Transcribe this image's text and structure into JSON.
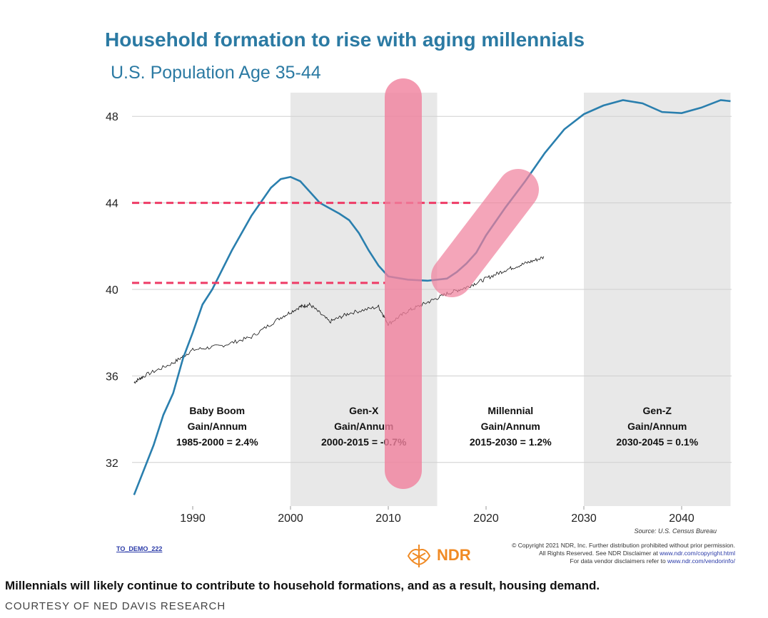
{
  "chart_data": {
    "type": "line",
    "title": "Household formation to rise with aging millennials",
    "subtitle": "U.S. Population Age 35-44",
    "xlabel": "",
    "ylabel": "",
    "xlim": [
      1983.7,
      2045
    ],
    "ylim": [
      30,
      50.2
    ],
    "x_ticks": [
      "1990",
      "2000",
      "2010",
      "2020",
      "2030",
      "2040"
    ],
    "y_ticks": [
      "32",
      "36",
      "40",
      "44",
      "48"
    ],
    "grid": "horizontal",
    "shaded_periods": [
      [
        2000,
        2015
      ],
      [
        2030,
        2045
      ]
    ],
    "series": [
      {
        "color": "#2a7fae",
        "x": [
          1984,
          1986,
          1987,
          1988,
          1989,
          1990,
          1991,
          1992,
          1994,
          1996,
          1998,
          1999,
          2000,
          2001,
          2002,
          2003,
          2005,
          2006,
          2007,
          2008,
          2009,
          2010,
          2012,
          2014,
          2016,
          2017,
          2018,
          2019,
          2020,
          2022,
          2024,
          2026,
          2028,
          2030,
          2032,
          2034,
          2036,
          2038,
          2040,
          2042,
          2044,
          2045
        ],
        "y": [
          30.5,
          32.8,
          34.2,
          35.2,
          36.8,
          38.0,
          39.3,
          40.0,
          41.8,
          43.4,
          44.7,
          45.1,
          45.2,
          45.0,
          44.5,
          44.0,
          43.5,
          43.2,
          42.6,
          41.8,
          41.1,
          40.6,
          40.45,
          40.4,
          40.5,
          40.8,
          41.2,
          41.7,
          42.5,
          43.8,
          45.0,
          46.3,
          47.4,
          48.1,
          48.5,
          48.75,
          48.6,
          48.2,
          48.15,
          48.4,
          48.75,
          48.7
        ]
      },
      {
        "color": "#111111",
        "x": [
          1984,
          1985,
          1988,
          1990,
          1993,
          1996,
          1999,
          2001,
          2002,
          2004,
          2006,
          2009,
          2010,
          2012,
          2014,
          2016,
          2018,
          2020,
          2022,
          2024,
          2026
        ],
        "y": [
          35.7,
          36.0,
          36.6,
          37.2,
          37.4,
          37.8,
          38.7,
          39.2,
          39.3,
          38.5,
          38.9,
          39.2,
          38.4,
          39.0,
          39.4,
          39.8,
          40.1,
          40.5,
          40.9,
          41.2,
          41.5
        ]
      }
    ],
    "reference_lines": [
      {
        "y": 44,
        "x_end": 2018.5,
        "color": "#ee3b66"
      },
      {
        "y": 40.3,
        "x_end": 2009.7,
        "color": "#ee3b66"
      }
    ],
    "annotations": [
      {
        "x": 1992.5,
        "lines": [
          "Baby Boom",
          "Gain/Annum",
          "1985-2000 = 2.4%"
        ]
      },
      {
        "x": 2007.5,
        "lines": [
          "Gen-X",
          "Gain/Annum",
          "2000-2015 = -0.7%"
        ]
      },
      {
        "x": 2022.5,
        "lines": [
          "Millennial",
          "Gain/Annum",
          "2015-2030 = 1.2%"
        ]
      },
      {
        "x": 2037.5,
        "lines": [
          "Gen-Z",
          "Gain/Annum",
          "2030-2045 = 0.1%"
        ]
      }
    ],
    "highlight_color": "#f0809c"
  },
  "footer": {
    "source": "Source: U.S. Census Bureau",
    "demo_link": "TO_DEMO_222",
    "logo": "NDR",
    "copyright_lines": [
      "© Copyright 2021 NDR, Inc. Further distribution prohibited without prior permission.",
      "All Rights Reserved. See NDR Disclaimer at ",
      "For data vendor disclaimers refer to "
    ],
    "copyright_link": "www.ndr.com/copyright.html",
    "vendor_link": "www.ndr.com/vendorinfo/"
  },
  "caption": "Millennials will likely continue to contribute to household formations, and as a result, housing demand.",
  "credit": "COURTESY OF NED DAVIS RESEARCH"
}
